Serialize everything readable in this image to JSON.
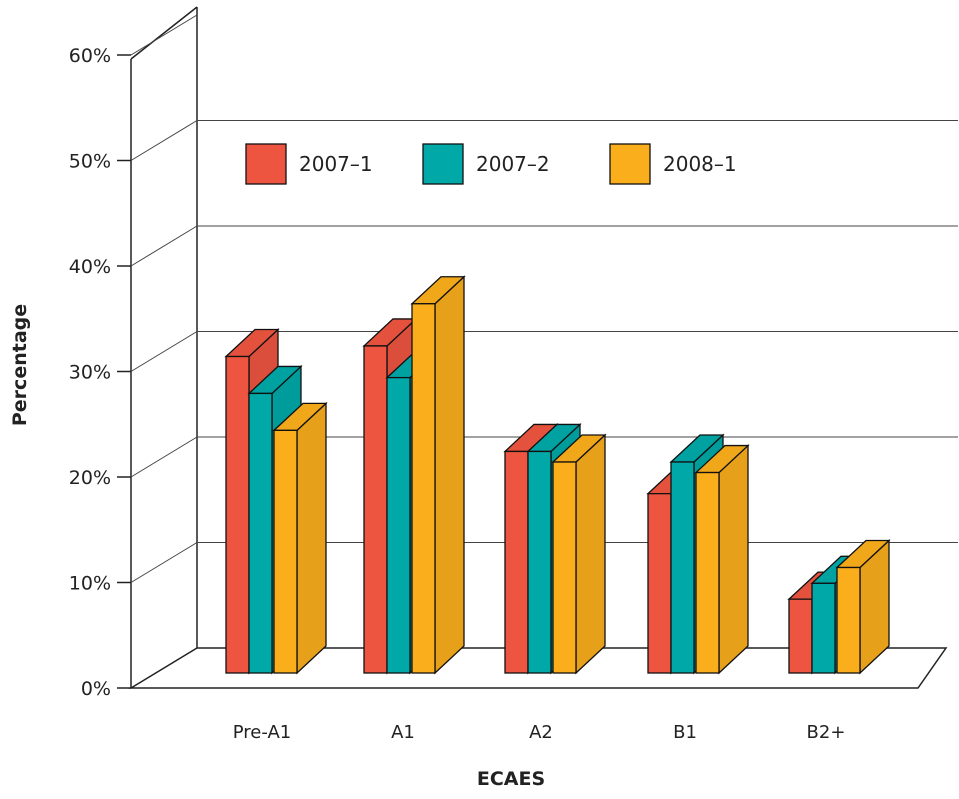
{
  "chart_data": {
    "type": "bar",
    "title": "",
    "xlabel": "ECAES",
    "ylabel": "Percentage",
    "categories": [
      "Pre-A1",
      "A1",
      "A2",
      "B1",
      "B2+"
    ],
    "series": [
      {
        "name": "2007–1",
        "color": "#EE5540",
        "values": [
          30,
          31,
          21,
          17,
          7
        ]
      },
      {
        "name": "2007–2",
        "color": "#00A8A8",
        "values": [
          26.5,
          28,
          21,
          20,
          8.5
        ]
      },
      {
        "name": "2008–1",
        "color": "#FBAE1B",
        "values": [
          23,
          35,
          20,
          19,
          10
        ]
      }
    ],
    "ylim": [
      0,
      60
    ],
    "yticks": [
      0,
      10,
      20,
      30,
      40,
      50,
      60
    ],
    "ytick_labels": [
      "0%",
      "10%",
      "20%",
      "30%",
      "40%",
      "50%",
      "60%"
    ],
    "grid": true,
    "legend_position": "top-left",
    "style": "3d-bar"
  }
}
